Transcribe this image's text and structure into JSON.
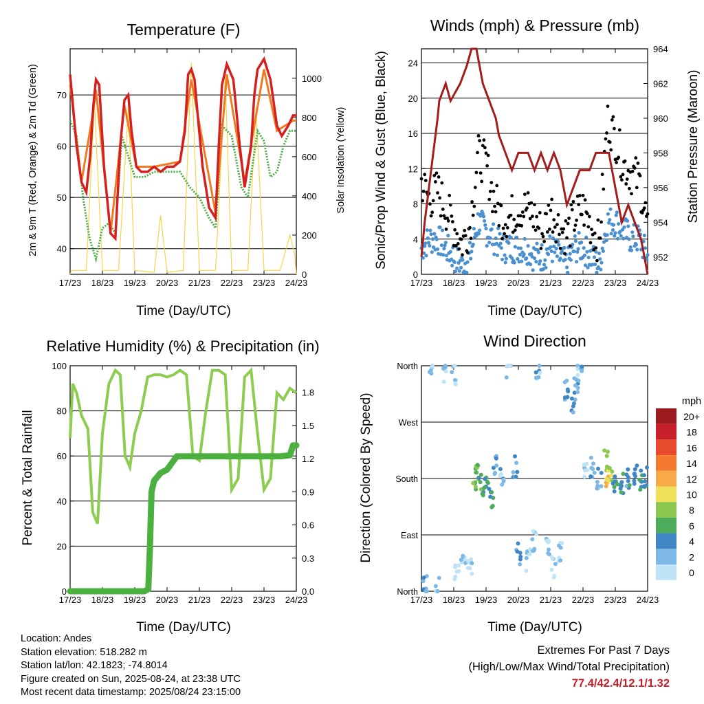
{
  "panels": {
    "temperature": {
      "title": "Temperature (F)",
      "ylabel_left": "2m & 9m T (Red, Orange) & 2m Td (Green)",
      "ylabel_right": "Solar Insolation (Yellow)",
      "xlabel": "Time (Day/UTC)"
    },
    "winds": {
      "title": "Winds (mph) & Pressure (mb)",
      "ylabel_left": "Sonic/Prop Wind & Gust (Blue, Black)",
      "ylabel_right": "Station Pressure (Maroon)",
      "xlabel": "Time (Day/UTC)"
    },
    "humidity": {
      "title": "Relative Humidity (%) & Precipitation (in)",
      "ylabel_left": "Percent & Total Rainfall",
      "xlabel": "Time (Day/UTC)"
    },
    "direction": {
      "title": "Wind Direction",
      "ylabel_left": "Direction (Colored By Speed)",
      "xlabel": "Time (Day/UTC)",
      "legend_title": "mph"
    }
  },
  "info": {
    "location": "Location: Andes",
    "elevation": "Station elevation: 518.282 m",
    "latlon": "Station lat/lon: 42.1823; -74.8014",
    "created": "Figure created on Sun, 2025-08-24, at 23:38 UTC",
    "recent": "Most recent data timestamp: 2025/08/24 23:15:00"
  },
  "extremes": {
    "title": "Extremes For Past 7 Days",
    "subtitle": "(High/Low/Max Wind/Total Precipitation)",
    "values": "77.4/42.4/12.1/1.32",
    "color": "#c8202a"
  },
  "chart_data": [
    {
      "id": "temperature",
      "type": "line",
      "title": "Temperature (F)",
      "xlabel": "Time (Day/UTC)",
      "ylabel": "2m & 9m T (Red, Orange) & 2m Td (Green)",
      "y2label": "Solar Insolation (Yellow)",
      "x_ticks": [
        "17/23",
        "18/23",
        "19/23",
        "20/23",
        "21/23",
        "22/23",
        "23/23",
        "24/23"
      ],
      "xlim": [
        0,
        7
      ],
      "ylim": [
        35,
        79
      ],
      "yticks": [
        40,
        50,
        60,
        70
      ],
      "y2lim": [
        0,
        1150
      ],
      "y2ticks": [
        0,
        200,
        400,
        600,
        800,
        1000
      ],
      "x_unit": "days since 17/23",
      "series": [
        {
          "name": "2m T",
          "color": "#d42020",
          "axis": "left",
          "x": [
            0,
            0.1,
            0.2,
            0.35,
            0.5,
            0.62,
            0.72,
            0.8,
            0.9,
            1.05,
            1.25,
            1.4,
            1.55,
            1.68,
            1.8,
            1.9,
            2.05,
            2.2,
            2.4,
            2.6,
            2.8,
            3.0,
            3.2,
            3.4,
            3.55,
            3.65,
            3.75,
            3.85,
            3.95,
            4.1,
            4.3,
            4.5,
            4.6,
            4.7,
            4.85,
            5.05,
            5.25,
            5.4,
            5.6,
            5.7,
            5.8,
            6.0,
            6.2,
            6.4,
            6.55,
            6.75,
            6.9,
            7.0
          ],
          "y": [
            74,
            67,
            60,
            53,
            51,
            58,
            68,
            73,
            72,
            56,
            43,
            42,
            60,
            69,
            70,
            63,
            56,
            55,
            55,
            56,
            55,
            56,
            56,
            57,
            63,
            74,
            75,
            73,
            66,
            56,
            48,
            46,
            60,
            72,
            76,
            73,
            60,
            52,
            60,
            70,
            75,
            77,
            73,
            64,
            62,
            64,
            66,
            66
          ]
        },
        {
          "name": "9m T",
          "color": "#f07a20",
          "axis": "left",
          "x": [
            0,
            0.35,
            0.72,
            0.8,
            1.25,
            1.68,
            2.05,
            2.6,
            3.4,
            3.75,
            4.5,
            4.85,
            5.4,
            6.0,
            6.4,
            6.9,
            7.0
          ],
          "y": [
            72,
            53,
            67,
            71,
            43,
            68,
            56,
            56,
            57,
            73,
            47,
            74,
            53,
            75,
            63,
            65,
            65
          ]
        },
        {
          "name": "2m Td",
          "color": "#4cae44",
          "axis": "left",
          "x": [
            0,
            0.2,
            0.4,
            0.6,
            0.8,
            1.0,
            1.2,
            1.4,
            1.6,
            1.8,
            2.0,
            2.3,
            2.6,
            3.0,
            3.4,
            3.7,
            4.0,
            4.3,
            4.5,
            4.7,
            5.0,
            5.3,
            5.5,
            5.8,
            6.0,
            6.2,
            6.4,
            6.6,
            6.8,
            7.0
          ],
          "y": [
            65,
            62,
            50,
            42,
            38,
            44,
            45,
            43,
            62,
            58,
            54,
            54,
            55,
            55,
            55,
            52,
            50,
            46,
            44,
            64,
            62,
            52,
            50,
            63,
            61,
            54,
            55,
            60,
            63,
            63
          ]
        },
        {
          "name": "Solar Insolation",
          "color": "#f5d547",
          "axis": "right",
          "x": [
            0,
            0.05,
            0.5,
            0.75,
            1.0,
            1.5,
            1.8,
            2.0,
            2.6,
            2.8,
            3.0,
            3.5,
            3.75,
            4.0,
            4.5,
            4.8,
            5.0,
            5.5,
            5.75,
            6.0,
            6.5,
            6.8,
            6.95,
            7.0
          ],
          "y": [
            0,
            20,
            20,
            880,
            20,
            20,
            850,
            20,
            10,
            300,
            10,
            20,
            1080,
            20,
            20,
            1000,
            20,
            20,
            850,
            20,
            20,
            200,
            100,
            0
          ]
        }
      ]
    },
    {
      "id": "winds",
      "type": "scatter",
      "title": "Winds (mph) & Pressure (mb)",
      "xlabel": "Time (Day/UTC)",
      "ylabel": "Sonic/Prop Wind & Gust (Blue, Black)",
      "y2label": "Station Pressure (Maroon)",
      "x_ticks": [
        "17/23",
        "18/23",
        "19/23",
        "20/23",
        "21/23",
        "22/23",
        "23/23",
        "24/23"
      ],
      "xlim": [
        0,
        7
      ],
      "ylim": [
        0,
        25.6
      ],
      "yticks": [
        0,
        4,
        8,
        12,
        16,
        20,
        24
      ],
      "y2lim": [
        951,
        964
      ],
      "y2ticks": [
        952,
        954,
        956,
        958,
        960,
        962,
        964
      ],
      "x_unit": "days since 17/23",
      "series": [
        {
          "name": "Station Pressure",
          "color": "#a31b1b",
          "axis": "right",
          "kind": "line",
          "x": [
            0,
            0.1,
            0.3,
            0.5,
            0.55,
            0.75,
            0.9,
            1.2,
            1.4,
            1.55,
            1.7,
            1.9,
            2.1,
            2.3,
            2.4,
            2.6,
            2.8,
            3.0,
            3.3,
            3.5,
            3.7,
            3.9,
            4.1,
            4.3,
            4.5,
            4.7,
            4.9,
            5.2,
            5.4,
            5.6,
            5.8,
            6.0,
            6.2,
            6.4,
            6.6,
            6.8,
            7.0
          ],
          "y": [
            952,
            954,
            957,
            960,
            961,
            962,
            961,
            962,
            963,
            964,
            964,
            962,
            961,
            960,
            959,
            958,
            957,
            958,
            958,
            957,
            958,
            957,
            958,
            957,
            955,
            956,
            957,
            957,
            958,
            958,
            958,
            956,
            954,
            955,
            954,
            953,
            951
          ]
        },
        {
          "name": "Wind Gust",
          "color": "#000000",
          "axis": "left",
          "kind": "points",
          "x": [
            0,
            0.25,
            0.5,
            0.75,
            1.0,
            1.25,
            1.5,
            1.75,
            2.0,
            2.25,
            2.5,
            2.75,
            3.0,
            3.25,
            3.5,
            3.75,
            4.0,
            4.25,
            4.5,
            4.75,
            5.0,
            5.25,
            5.5,
            5.75,
            6.0,
            6.25,
            6.5,
            6.75,
            7.0
          ],
          "y": [
            10,
            8,
            9,
            7,
            5,
            3,
            5,
            13,
            12,
            8,
            6,
            6,
            7,
            7,
            6,
            4,
            7,
            5,
            4,
            6,
            7,
            5,
            3,
            17,
            15,
            12,
            11,
            10,
            5
          ]
        },
        {
          "name": "Wind Speed",
          "color": "#4a90d0",
          "axis": "left",
          "kind": "points",
          "x": [
            0,
            0.25,
            0.5,
            0.75,
            1.0,
            1.25,
            1.5,
            1.75,
            2.0,
            2.25,
            2.5,
            2.75,
            3.0,
            3.25,
            3.5,
            3.75,
            4.0,
            4.25,
            4.5,
            4.75,
            5.0,
            5.25,
            5.5,
            5.75,
            6.0,
            6.25,
            6.5,
            6.75,
            7.0
          ],
          "y": [
            3,
            4,
            4,
            3,
            2,
            1,
            2,
            6,
            5,
            4,
            3,
            3,
            3,
            3,
            2,
            2,
            3,
            2,
            1,
            3,
            3,
            2,
            1,
            6,
            6,
            5,
            4,
            4,
            2
          ]
        }
      ]
    },
    {
      "id": "humidity",
      "type": "line",
      "title": "Relative Humidity (%) & Precipitation (in)",
      "xlabel": "Time (Day/UTC)",
      "ylabel": "Percent & Total Rainfall",
      "x_ticks": [
        "17/23",
        "18/23",
        "19/23",
        "20/23",
        "21/23",
        "22/23",
        "23/23",
        "24/23"
      ],
      "xlim": [
        0,
        7
      ],
      "ylim": [
        0,
        100
      ],
      "yticks": [
        0,
        20,
        40,
        60,
        80,
        100
      ],
      "y2lim": [
        0,
        2.04
      ],
      "y2ticks": [
        0.0,
        0.3,
        0.6,
        0.9,
        1.2,
        1.5,
        1.8
      ],
      "x_unit": "days since 17/23",
      "series": [
        {
          "name": "Relative Humidity",
          "color": "#8ccc4e",
          "axis": "left",
          "x": [
            0,
            0.08,
            0.2,
            0.35,
            0.55,
            0.7,
            0.85,
            1.0,
            1.2,
            1.4,
            1.55,
            1.7,
            1.85,
            2.0,
            2.2,
            2.4,
            2.6,
            2.8,
            3.0,
            3.2,
            3.4,
            3.6,
            3.8,
            4.0,
            4.2,
            4.4,
            4.6,
            4.8,
            5.0,
            5.2,
            5.4,
            5.6,
            5.8,
            6.0,
            6.2,
            6.4,
            6.6,
            6.8,
            7.0
          ],
          "y": [
            68,
            92,
            88,
            78,
            72,
            35,
            30,
            70,
            92,
            98,
            96,
            60,
            55,
            70,
            80,
            95,
            96,
            96,
            95,
            96,
            98,
            96,
            60,
            58,
            80,
            98,
            98,
            96,
            45,
            50,
            95,
            98,
            70,
            45,
            50,
            88,
            85,
            90,
            88
          ]
        },
        {
          "name": "Total Rainfall",
          "color": "#4cb040",
          "axis": "right",
          "x": [
            0,
            0.5,
            1.0,
            1.5,
            2.0,
            2.3,
            2.42,
            2.47,
            2.52,
            2.6,
            2.8,
            3.0,
            3.3,
            3.7,
            4.0,
            4.5,
            5.0,
            5.5,
            6.0,
            6.5,
            6.8,
            6.9,
            7.0
          ],
          "y": [
            0.0,
            0.0,
            0.0,
            0.0,
            0.0,
            0.0,
            0.02,
            0.4,
            0.9,
            1.0,
            1.07,
            1.1,
            1.22,
            1.22,
            1.22,
            1.22,
            1.22,
            1.22,
            1.22,
            1.22,
            1.23,
            1.32,
            1.32
          ]
        }
      ]
    },
    {
      "id": "direction",
      "type": "scatter",
      "title": "Wind Direction",
      "xlabel": "Time (Day/UTC)",
      "ylabel": "Direction (Colored By Speed)",
      "x_ticks": [
        "17/23",
        "18/23",
        "19/23",
        "20/23",
        "21/23",
        "22/23",
        "23/23",
        "24/23"
      ],
      "xlim": [
        0,
        7
      ],
      "y_categories": [
        "North",
        "East",
        "South",
        "West",
        "North"
      ],
      "ylim": [
        0,
        360
      ],
      "x_unit": "days since 17/23",
      "legend": {
        "title": "mph",
        "labels": [
          "20+",
          "18",
          "16",
          "14",
          "12",
          "10",
          "8",
          "6",
          "4",
          "2",
          "0"
        ],
        "colors": [
          "#9b1b1e",
          "#c8202a",
          "#e84a2c",
          "#f47a30",
          "#f9aa48",
          "#efe05c",
          "#8cc84f",
          "#4dac5c",
          "#3f86c4",
          "#7db8e6",
          "#bfe3f6"
        ]
      },
      "series": [
        {
          "name": "Direction",
          "color": "#4a90d0",
          "x": [
            0.1,
            0.3,
            0.5,
            0.7,
            1.0,
            1.1,
            1.3,
            1.5,
            1.65,
            1.75,
            1.85,
            2.0,
            2.15,
            2.3,
            2.5,
            2.7,
            2.9,
            3.0,
            3.3,
            3.5,
            3.6,
            3.9,
            4.1,
            4.3,
            4.5,
            4.7,
            4.8,
            4.9,
            5.1,
            5.3,
            5.5,
            5.7,
            5.75,
            5.85,
            6.0,
            6.2,
            6.4,
            6.6,
            6.8,
            6.95
          ],
          "y": [
            10,
            355,
            5,
            350,
            345,
            30,
            60,
            40,
            180,
            190,
            170,
            175,
            150,
            200,
            180,
            350,
            200,
            60,
            50,
            80,
            350,
            70,
            40,
            60,
            320,
            300,
            330,
            350,
            190,
            200,
            180,
            210,
            185,
            180,
            175,
            170,
            180,
            185,
            175,
            180
          ],
          "speed": [
            2,
            2,
            2,
            1,
            1,
            0,
            1,
            0,
            7,
            7,
            6,
            6,
            5,
            3,
            2,
            1,
            3,
            3,
            1,
            2,
            2,
            1,
            1,
            1,
            3,
            3,
            2,
            2,
            1,
            2,
            2,
            9,
            11,
            9,
            5,
            5,
            4,
            4,
            5,
            4
          ]
        }
      ]
    }
  ]
}
